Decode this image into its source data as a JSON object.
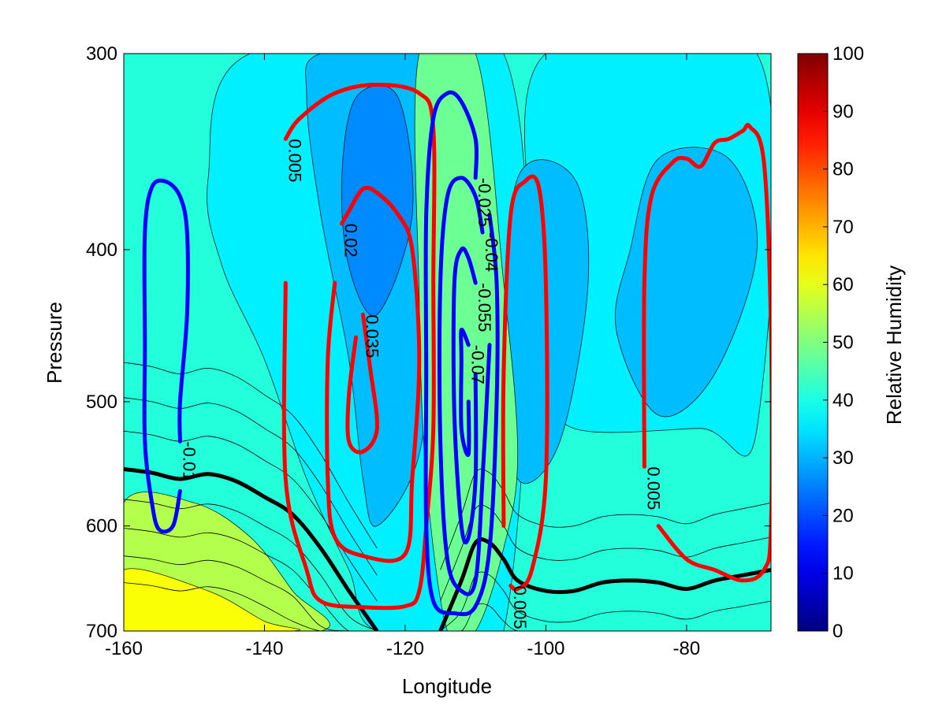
{
  "chart_data": {
    "type": "heatmap",
    "title": "",
    "xlabel": "Longitude",
    "ylabel": "Pressure",
    "xlim": [
      -160,
      -68
    ],
    "ylim": [
      300,
      700
    ],
    "y_reversed": true,
    "y_scale": "log",
    "x_ticks": [
      -160,
      -140,
      -120,
      -100,
      -80
    ],
    "y_ticks": [
      300,
      400,
      500,
      600,
      700
    ],
    "colorbar": {
      "label": "Relative Humidity",
      "range": [
        0,
        100
      ],
      "ticks": [
        0,
        10,
        20,
        30,
        40,
        50,
        60,
        70,
        80,
        90,
        100
      ],
      "colormap": "jet"
    },
    "filled_contours": {
      "variable": "Relative Humidity",
      "regions": [
        {
          "value": 55,
          "points": [
            [
              -160,
              580
            ],
            [
              -150,
              580
            ],
            [
              -142,
              610
            ],
            [
              -136,
              660
            ],
            [
              -132,
              700
            ],
            [
              -160,
              700
            ]
          ]
        },
        {
          "value": 62,
          "points": [
            [
              -160,
              640
            ],
            [
              -148,
              660
            ],
            [
              -140,
              690
            ],
            [
              -136,
              700
            ],
            [
              -160,
              700
            ]
          ]
        },
        {
          "value": 36,
          "points": [
            [
              -142,
              300
            ],
            [
              -106,
              300
            ],
            [
              -106,
              700
            ],
            [
              -124,
              700
            ],
            [
              -128,
              640
            ],
            [
              -134,
              560
            ],
            [
              -140,
              470
            ],
            [
              -146,
              410
            ],
            [
              -148,
              360
            ]
          ]
        },
        {
          "value": 36,
          "points": [
            [
              -100,
              300
            ],
            [
              -70,
              300
            ],
            [
              -70,
              520
            ],
            [
              -78,
              520
            ],
            [
              -96,
              520
            ],
            [
              -100,
              480
            ],
            [
              -102,
              400
            ]
          ]
        },
        {
          "value": 31,
          "points": [
            [
              -132,
              300
            ],
            [
              -116,
              300
            ],
            [
              -116,
              430
            ],
            [
              -118,
              540
            ],
            [
              -124,
              600
            ],
            [
              -126,
              560
            ],
            [
              -128,
              470
            ],
            [
              -132,
              380
            ],
            [
              -134,
              320
            ]
          ]
        },
        {
          "value": 31,
          "points": [
            [
              -104,
              360
            ],
            [
              -96,
              360
            ],
            [
              -94,
              420
            ],
            [
              -98,
              530
            ],
            [
              -104,
              560
            ],
            [
              -106,
              470
            ]
          ]
        },
        {
          "value": 31,
          "points": [
            [
              -84,
              350
            ],
            [
              -74,
              350
            ],
            [
              -70,
              400
            ],
            [
              -76,
              480
            ],
            [
              -84,
              510
            ],
            [
              -90,
              450
            ],
            [
              -88,
              400
            ]
          ]
        },
        {
          "value": 26,
          "points": [
            [
              -127,
              320
            ],
            [
              -121,
              320
            ],
            [
              -119,
              380
            ],
            [
              -124,
              440
            ],
            [
              -128,
              410
            ],
            [
              -129,
              360
            ]
          ]
        },
        {
          "value": 48,
          "points": [
            [
              -118,
              300
            ],
            [
              -110,
              300
            ],
            [
              -106,
              420
            ],
            [
              -104,
              540
            ],
            [
              -106,
              620
            ],
            [
              -110,
              700
            ],
            [
              -114,
              700
            ],
            [
              -117,
              560
            ],
            [
              -118,
              430
            ]
          ]
        }
      ]
    },
    "thick_contour": {
      "color": "#000000",
      "points": [
        [
          -160,
          552
        ],
        [
          -156,
          555
        ],
        [
          -152,
          560
        ],
        [
          -148,
          556
        ],
        [
          -144,
          562
        ],
        [
          -140,
          575
        ],
        [
          -136,
          590
        ],
        [
          -132,
          620
        ],
        [
          -128,
          660
        ],
        [
          -124,
          700
        ]
      ]
    },
    "thick_contour_2": {
      "color": "#000000",
      "points": [
        [
          -115,
          700
        ],
        [
          -112,
          650
        ],
        [
          -110,
          615
        ],
        [
          -108,
          615
        ],
        [
          -106,
          630
        ],
        [
          -104,
          650
        ],
        [
          -100,
          660
        ],
        [
          -96,
          660
        ],
        [
          -92,
          652
        ],
        [
          -88,
          650
        ],
        [
          -84,
          652
        ],
        [
          -80,
          658
        ],
        [
          -76,
          650
        ],
        [
          -72,
          645
        ],
        [
          -68,
          640
        ]
      ]
    },
    "series": [
      {
        "name": "",
        "kind": "positive",
        "color": "#ff0000",
        "contours": [
          {
            "label": "0.005",
            "points": [
              [
                -137,
                340
              ],
              [
                -135,
                330
              ],
              [
                -130,
                318
              ],
              [
                -124,
                314
              ],
              [
                -118,
                318
              ],
              [
                -116,
                335
              ],
              [
                -116,
                420
              ],
              [
                -116,
                520
              ],
              [
                -117,
                600
              ],
              [
                -118,
                660
              ],
              [
                -120,
                675
              ],
              [
                -126,
                676
              ],
              [
                -132,
                670
              ],
              [
                -134,
                640
              ],
              [
                -137,
                560
              ],
              [
                -137,
                420
              ]
            ]
          },
          {
            "label": "0.02",
            "points": [
              [
                -129,
                385
              ],
              [
                -128,
                378
              ],
              [
                -126,
                366
              ],
              [
                -124,
                368
              ],
              [
                -121,
                380
              ],
              [
                -119,
                400
              ],
              [
                -118,
                470
              ],
              [
                -119,
                560
              ],
              [
                -120,
                625
              ],
              [
                -126,
                627
              ],
              [
                -130,
                610
              ],
              [
                -131,
                560
              ],
              [
                -131,
                470
              ],
              [
                -130,
                420
              ]
            ]
          },
          {
            "label": "0.035",
            "points": [
              [
                -126,
                440
              ],
              [
                -125,
                475
              ],
              [
                -124,
                520
              ],
              [
                -126,
                538
              ],
              [
                -128,
                530
              ],
              [
                -128,
                495
              ],
              [
                -127,
                455
              ]
            ]
          },
          {
            "label": "0.005",
            "points": [
              [
                -105,
                655
              ],
              [
                -104,
                658
              ],
              [
                -102,
                640
              ],
              [
                -100,
                560
              ],
              [
                -100,
                420
              ],
              [
                -101,
                365
              ],
              [
                -103,
                362
              ],
              [
                -105,
                380
              ],
              [
                -106,
                480
              ],
              [
                -106,
                600
              ]
            ]
          },
          {
            "label": "0.005",
            "points": [
              [
                -86,
                550
              ],
              [
                -86,
                420
              ],
              [
                -85,
                370
              ],
              [
                -82,
                352
              ],
              [
                -80,
                350
              ],
              [
                -78,
                354
              ],
              [
                -76,
                342
              ],
              [
                -74,
                340
              ],
              [
                -72,
                336
              ],
              [
                -71,
                334
              ],
              [
                -69,
                352
              ],
              [
                -68,
                450
              ],
              [
                -68,
                600
              ],
              [
                -69,
                640
              ],
              [
                -72,
                650
              ],
              [
                -76,
                640
              ],
              [
                -80,
                630
              ],
              [
                -84,
                600
              ]
            ]
          }
        ]
      },
      {
        "name": "",
        "kind": "negative",
        "color": "#0000ff",
        "contours": [
          {
            "label": "-0.01",
            "points": [
              [
                -152,
                530
              ],
              [
                -152,
                500
              ],
              [
                -151,
                440
              ],
              [
                -151,
                390
              ],
              [
                -152,
                370
              ],
              [
                -154,
                362
              ],
              [
                -156,
                365
              ],
              [
                -157,
                390
              ],
              [
                -157,
                460
              ],
              [
                -157,
                530
              ],
              [
                -156,
                580
              ],
              [
                -155,
                603
              ],
              [
                -153,
                600
              ],
              [
                -152,
                570
              ]
            ]
          },
          {
            "label": "-0.025",
            "points": [
              [
                -110,
                360
              ],
              [
                -110,
                340
              ],
              [
                -112,
                322
              ],
              [
                -114,
                318
              ],
              [
                -116,
                330
              ],
              [
                -117,
                380
              ],
              [
                -117,
                480
              ],
              [
                -117,
                600
              ],
              [
                -116,
                670
              ],
              [
                -113,
                682
              ],
              [
                -110,
                675
              ],
              [
                -108,
                620
              ],
              [
                -107,
                500
              ],
              [
                -107,
                420
              ],
              [
                -108,
                380
              ]
            ]
          },
          {
            "label": "-0.04",
            "points": [
              [
                -109,
                390
              ],
              [
                -110,
                370
              ],
              [
                -112,
                360
              ],
              [
                -114,
                370
              ],
              [
                -115,
                420
              ],
              [
                -115,
                530
              ],
              [
                -114,
                630
              ],
              [
                -112,
                660
              ],
              [
                -110,
                650
              ],
              [
                -109,
                560
              ],
              [
                -108,
                460
              ]
            ]
          },
          {
            "label": "-0.055",
            "points": [
              [
                -110,
                420
              ],
              [
                -111,
                405
              ],
              [
                -112,
                400
              ],
              [
                -113,
                420
              ],
              [
                -113,
                510
              ],
              [
                -112,
                600
              ],
              [
                -111,
                610
              ],
              [
                -110,
                560
              ],
              [
                -110,
                480
              ]
            ]
          },
          {
            "label": "-0.07",
            "points": [
              [
                -111,
                460
              ],
              [
                -112,
                450
              ],
              [
                -112,
                470
              ],
              [
                -112,
                520
              ],
              [
                -111,
                540
              ],
              [
                -111,
                500
              ]
            ]
          }
        ]
      }
    ]
  }
}
